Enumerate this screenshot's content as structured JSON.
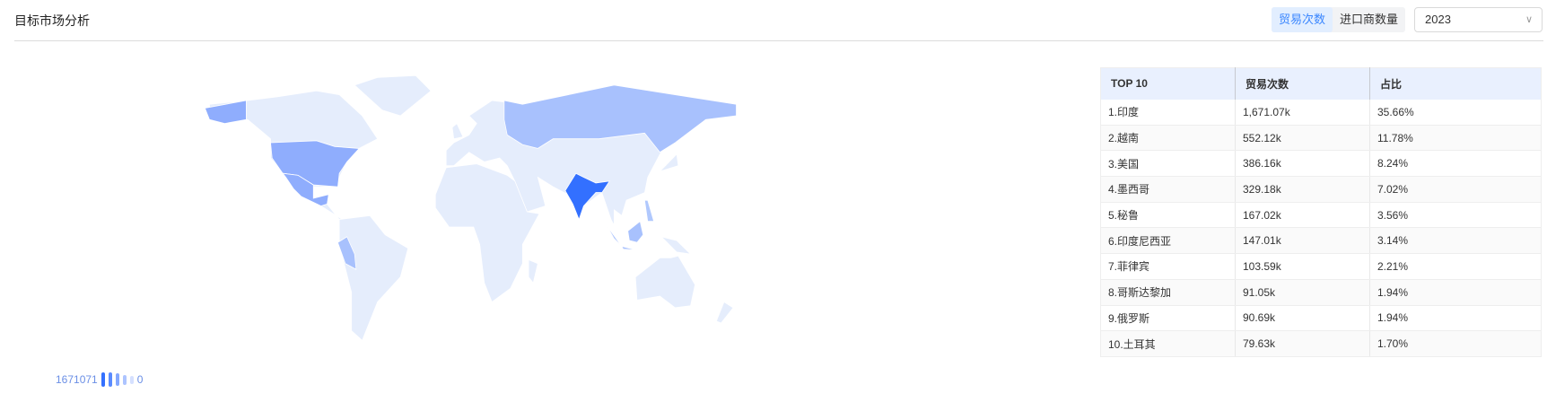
{
  "header": {
    "title": "目标市场分析",
    "tabs": [
      {
        "label": "贸易次数",
        "active": true
      },
      {
        "label": "进口商数量",
        "active": false
      }
    ],
    "year": "2023"
  },
  "map": {
    "legend_max": "1671071",
    "legend_min": "0",
    "colors": {
      "base": "#e5edfc",
      "max": "#3370ff"
    },
    "highlighted": {
      "india": "#3370ff",
      "usa": "#8fadfd",
      "mexico": "#8fadfd",
      "russia": "#a8c1fd",
      "peru": "#a8c1fd",
      "indonesia": "#a8c1fd",
      "philippines": "#b0c8fd"
    }
  },
  "table": {
    "headers": [
      "TOP 10",
      "贸易次数",
      "占比"
    ],
    "rows": [
      [
        "1.印度",
        "1,671.07k",
        "35.66%"
      ],
      [
        "2.越南",
        "552.12k",
        "11.78%"
      ],
      [
        "3.美国",
        "386.16k",
        "8.24%"
      ],
      [
        "4.墨西哥",
        "329.18k",
        "7.02%"
      ],
      [
        "5.秘鲁",
        "167.02k",
        "3.56%"
      ],
      [
        "6.印度尼西亚",
        "147.01k",
        "3.14%"
      ],
      [
        "7.菲律宾",
        "103.59k",
        "2.21%"
      ],
      [
        "8.哥斯达黎加",
        "91.05k",
        "1.94%"
      ],
      [
        "9.俄罗斯",
        "90.69k",
        "1.94%"
      ],
      [
        "10.土耳其",
        "79.63k",
        "1.70%"
      ]
    ]
  }
}
